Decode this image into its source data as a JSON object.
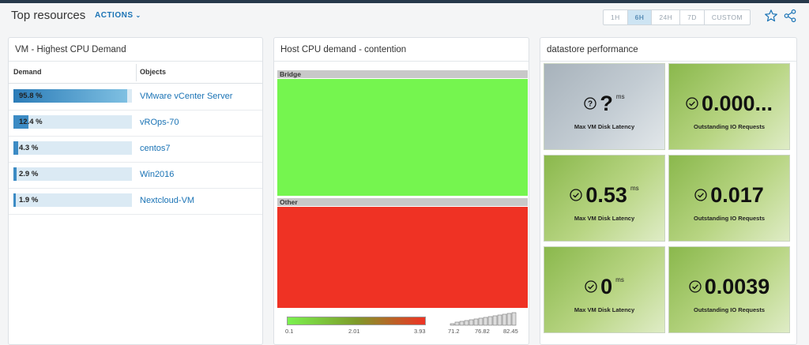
{
  "header": {
    "title": "Top resources",
    "actions_label": "ACTIONS",
    "time_ranges": [
      "1H",
      "6H",
      "24H",
      "7D",
      "CUSTOM"
    ],
    "active_time_range": "6H"
  },
  "vm_panel": {
    "title": "VM - Highest CPU Demand",
    "columns": [
      "Demand",
      "Objects"
    ],
    "rows": [
      {
        "demand": "95.8 %",
        "object": "VMware vCenter Server",
        "fraction": 0.958
      },
      {
        "demand": "12.4 %",
        "object": "vROps-70",
        "fraction": 0.124
      },
      {
        "demand": "4.3 %",
        "object": "centos7",
        "fraction": 0.043
      },
      {
        "demand": "2.9 %",
        "object": "Win2016",
        "fraction": 0.029
      },
      {
        "demand": "1.9 %",
        "object": "Nextcloud-VM",
        "fraction": 0.019
      }
    ]
  },
  "host_panel": {
    "title": "Host CPU demand - contention",
    "groups": [
      {
        "label": "Bridge",
        "color": "#75f54f"
      },
      {
        "label": "Other",
        "color": "#ef3224"
      }
    ],
    "legend": {
      "gradient_ticks": [
        "0.1",
        "2.01",
        "3.93"
      ],
      "histogram_ticks": [
        "71.2",
        "76.82",
        "82.45"
      ],
      "histogram_levels": [
        0.15,
        0.25,
        0.33,
        0.4,
        0.46,
        0.52,
        0.58,
        0.64,
        0.7,
        0.76,
        0.82,
        0.88,
        0.94,
        1.0
      ]
    }
  },
  "ds_panel": {
    "title": "datastore performance",
    "tiles": [
      {
        "value": "?",
        "unit": "ms",
        "label": "Max VM Disk Latency",
        "state": "unknown",
        "color": "#b4bec6"
      },
      {
        "value": "0.000...",
        "unit": "",
        "label": "Outstanding IO Requests",
        "state": "ok",
        "color": "#a5c96a"
      },
      {
        "value": "0.53",
        "unit": "ms",
        "label": "Max VM Disk Latency",
        "state": "ok",
        "color": "#a5c96a"
      },
      {
        "value": "0.017",
        "unit": "",
        "label": "Outstanding IO Requests",
        "state": "ok",
        "color": "#a5c96a"
      },
      {
        "value": "0",
        "unit": "ms",
        "label": "Max VM Disk Latency",
        "state": "ok",
        "color": "#a5c96a"
      },
      {
        "value": "0.0039",
        "unit": "",
        "label": "Outstanding IO Requests",
        "state": "ok",
        "color": "#a5c96a"
      }
    ]
  }
}
